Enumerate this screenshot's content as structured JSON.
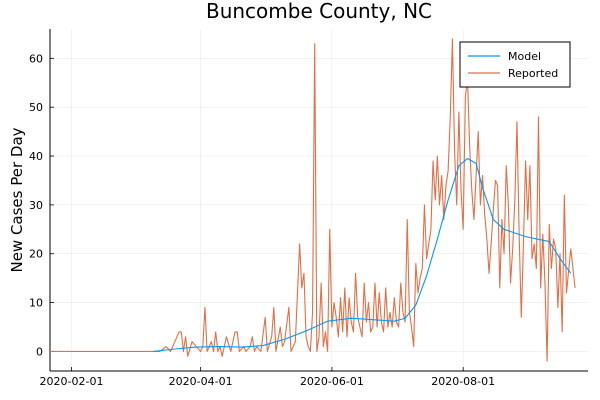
{
  "chart_data": {
    "type": "line",
    "title": "Buncombe County, NC",
    "xlabel": "",
    "ylabel": "New Cases Per Day",
    "xlim": [
      "2020-01-22",
      "2020-09-28"
    ],
    "ylim": [
      -4,
      66
    ],
    "xticks": [
      "2020-02-01",
      "2020-04-01",
      "2020-06-01",
      "2020-08-01"
    ],
    "yticks": [
      0,
      10,
      20,
      30,
      40,
      50,
      60
    ],
    "grid": true,
    "legend": "top-right",
    "series": [
      {
        "name": "Model",
        "color": "#009af9",
        "points": [
          [
            "2020-03-10",
            0
          ],
          [
            "2020-03-20",
            0.5
          ],
          [
            "2020-03-30",
            0.9
          ],
          [
            "2020-04-10",
            1.0
          ],
          [
            "2020-04-20",
            0.9
          ],
          [
            "2020-04-30",
            1.2
          ],
          [
            "2020-05-10",
            2.5
          ],
          [
            "2020-05-20",
            4.2
          ],
          [
            "2020-05-30",
            6.2
          ],
          [
            "2020-06-10",
            6.8
          ],
          [
            "2020-06-20",
            6.5
          ],
          [
            "2020-06-30",
            6.2
          ],
          [
            "2020-07-05",
            6.8
          ],
          [
            "2020-07-10",
            9.5
          ],
          [
            "2020-07-15",
            15.5
          ],
          [
            "2020-07-20",
            23.0
          ],
          [
            "2020-07-25",
            31.0
          ],
          [
            "2020-07-30",
            38.0
          ],
          [
            "2020-08-03",
            39.5
          ],
          [
            "2020-08-07",
            38.5
          ],
          [
            "2020-08-10",
            33.5
          ],
          [
            "2020-08-15",
            27.0
          ],
          [
            "2020-08-20",
            25.0
          ],
          [
            "2020-08-30",
            23.5
          ],
          [
            "2020-09-10",
            22.5
          ],
          [
            "2020-09-15",
            19.0
          ],
          [
            "2020-09-20",
            16.0
          ]
        ]
      },
      {
        "name": "Reported",
        "color": "#e26f46",
        "points": [
          [
            "2020-01-22",
            0
          ],
          [
            "2020-03-13",
            0
          ],
          [
            "2020-03-16",
            1
          ],
          [
            "2020-03-18",
            0
          ],
          [
            "2020-03-20",
            2
          ],
          [
            "2020-03-22",
            4
          ],
          [
            "2020-03-23",
            4
          ],
          [
            "2020-03-24",
            0
          ],
          [
            "2020-03-25",
            3
          ],
          [
            "2020-03-26",
            -1
          ],
          [
            "2020-03-28",
            2
          ],
          [
            "2020-03-30",
            1
          ],
          [
            "2020-04-01",
            0
          ],
          [
            "2020-04-02",
            1
          ],
          [
            "2020-04-03",
            9
          ],
          [
            "2020-04-04",
            0
          ],
          [
            "2020-04-06",
            2
          ],
          [
            "2020-04-07",
            0
          ],
          [
            "2020-04-08",
            4
          ],
          [
            "2020-04-09",
            0
          ],
          [
            "2020-04-10",
            1
          ],
          [
            "2020-04-11",
            -1
          ],
          [
            "2020-04-13",
            3
          ],
          [
            "2020-04-15",
            0
          ],
          [
            "2020-04-17",
            4
          ],
          [
            "2020-04-18",
            4
          ],
          [
            "2020-04-19",
            0
          ],
          [
            "2020-04-21",
            1
          ],
          [
            "2020-04-22",
            0
          ],
          [
            "2020-04-24",
            1
          ],
          [
            "2020-04-25",
            3
          ],
          [
            "2020-04-26",
            0
          ],
          [
            "2020-04-27",
            1
          ],
          [
            "2020-04-29",
            0
          ],
          [
            "2020-05-01",
            7
          ],
          [
            "2020-05-02",
            0
          ],
          [
            "2020-05-04",
            3
          ],
          [
            "2020-05-05",
            9
          ],
          [
            "2020-05-06",
            0
          ],
          [
            "2020-05-08",
            5
          ],
          [
            "2020-05-09",
            1
          ],
          [
            "2020-05-10",
            2
          ],
          [
            "2020-05-12",
            9
          ],
          [
            "2020-05-13",
            0
          ],
          [
            "2020-05-15",
            2
          ],
          [
            "2020-05-17",
            22
          ],
          [
            "2020-05-18",
            13
          ],
          [
            "2020-05-19",
            16
          ],
          [
            "2020-05-20",
            3
          ],
          [
            "2020-05-21",
            1
          ],
          [
            "2020-05-22",
            0
          ],
          [
            "2020-05-23",
            8
          ],
          [
            "2020-05-24",
            63
          ],
          [
            "2020-05-25",
            0
          ],
          [
            "2020-05-26",
            3
          ],
          [
            "2020-05-27",
            14
          ],
          [
            "2020-05-28",
            1
          ],
          [
            "2020-05-29",
            4
          ],
          [
            "2020-05-30",
            0
          ],
          [
            "2020-05-31",
            25
          ],
          [
            "2020-06-01",
            5
          ],
          [
            "2020-06-02",
            10
          ],
          [
            "2020-06-03",
            7
          ],
          [
            "2020-06-04",
            3
          ],
          [
            "2020-06-05",
            11
          ],
          [
            "2020-06-06",
            4
          ],
          [
            "2020-06-07",
            13
          ],
          [
            "2020-06-08",
            3
          ],
          [
            "2020-06-09",
            11
          ],
          [
            "2020-06-10",
            6
          ],
          [
            "2020-06-11",
            4
          ],
          [
            "2020-06-12",
            16
          ],
          [
            "2020-06-13",
            7
          ],
          [
            "2020-06-14",
            5
          ],
          [
            "2020-06-15",
            3
          ],
          [
            "2020-06-16",
            14
          ],
          [
            "2020-06-17",
            6
          ],
          [
            "2020-06-18",
            10
          ],
          [
            "2020-06-19",
            4
          ],
          [
            "2020-06-20",
            5
          ],
          [
            "2020-06-21",
            14
          ],
          [
            "2020-06-22",
            5
          ],
          [
            "2020-06-23",
            12
          ],
          [
            "2020-06-24",
            6
          ],
          [
            "2020-06-25",
            4
          ],
          [
            "2020-06-26",
            13
          ],
          [
            "2020-06-27",
            5
          ],
          [
            "2020-06-28",
            8
          ],
          [
            "2020-06-29",
            5
          ],
          [
            "2020-06-30",
            11
          ],
          [
            "2020-07-01",
            6
          ],
          [
            "2020-07-02",
            5
          ],
          [
            "2020-07-03",
            14
          ],
          [
            "2020-07-04",
            8
          ],
          [
            "2020-07-05",
            6
          ],
          [
            "2020-07-06",
            27
          ],
          [
            "2020-07-07",
            8
          ],
          [
            "2020-07-08",
            5
          ],
          [
            "2020-07-09",
            1
          ],
          [
            "2020-07-10",
            18
          ],
          [
            "2020-07-11",
            12
          ],
          [
            "2020-07-12",
            15
          ],
          [
            "2020-07-13",
            17
          ],
          [
            "2020-07-14",
            30
          ],
          [
            "2020-07-15",
            19
          ],
          [
            "2020-07-16",
            22
          ],
          [
            "2020-07-17",
            25
          ],
          [
            "2020-07-18",
            39
          ],
          [
            "2020-07-19",
            31
          ],
          [
            "2020-07-20",
            40
          ],
          [
            "2020-07-21",
            30
          ],
          [
            "2020-07-22",
            36
          ],
          [
            "2020-07-23",
            27
          ],
          [
            "2020-07-24",
            34
          ],
          [
            "2020-07-25",
            37
          ],
          [
            "2020-07-26",
            48
          ],
          [
            "2020-07-27",
            64
          ],
          [
            "2020-07-28",
            41
          ],
          [
            "2020-07-29",
            30
          ],
          [
            "2020-07-30",
            49
          ],
          [
            "2020-07-31",
            33
          ],
          [
            "2020-08-01",
            25
          ],
          [
            "2020-08-02",
            52
          ],
          [
            "2020-08-03",
            56
          ],
          [
            "2020-08-04",
            42
          ],
          [
            "2020-08-05",
            33
          ],
          [
            "2020-08-06",
            27
          ],
          [
            "2020-08-07",
            36
          ],
          [
            "2020-08-08",
            45
          ],
          [
            "2020-08-09",
            30
          ],
          [
            "2020-08-10",
            36
          ],
          [
            "2020-08-11",
            28
          ],
          [
            "2020-08-12",
            23
          ],
          [
            "2020-08-13",
            16
          ],
          [
            "2020-08-14",
            22
          ],
          [
            "2020-08-15",
            29
          ],
          [
            "2020-08-16",
            35
          ],
          [
            "2020-08-17",
            34
          ],
          [
            "2020-08-18",
            13
          ],
          [
            "2020-08-19",
            27
          ],
          [
            "2020-08-20",
            20
          ],
          [
            "2020-08-21",
            38
          ],
          [
            "2020-08-22",
            30
          ],
          [
            "2020-08-23",
            14
          ],
          [
            "2020-08-24",
            21
          ],
          [
            "2020-08-25",
            31
          ],
          [
            "2020-08-26",
            47
          ],
          [
            "2020-08-27",
            24
          ],
          [
            "2020-08-28",
            7
          ],
          [
            "2020-08-29",
            22
          ],
          [
            "2020-08-30",
            39
          ],
          [
            "2020-08-31",
            27
          ],
          [
            "2020-09-01",
            38
          ],
          [
            "2020-09-02",
            19
          ],
          [
            "2020-09-03",
            22
          ],
          [
            "2020-09-04",
            17
          ],
          [
            "2020-09-05",
            48
          ],
          [
            "2020-09-06",
            13
          ],
          [
            "2020-09-07",
            24
          ],
          [
            "2020-09-08",
            14
          ],
          [
            "2020-09-09",
            -2
          ],
          [
            "2020-09-10",
            26
          ],
          [
            "2020-09-11",
            17
          ],
          [
            "2020-09-12",
            23
          ],
          [
            "2020-09-13",
            21
          ],
          [
            "2020-09-14",
            9
          ],
          [
            "2020-09-15",
            20
          ],
          [
            "2020-09-16",
            4
          ],
          [
            "2020-09-17",
            32
          ],
          [
            "2020-09-18",
            12
          ],
          [
            "2020-09-20",
            21
          ],
          [
            "2020-09-22",
            13
          ]
        ]
      }
    ]
  }
}
